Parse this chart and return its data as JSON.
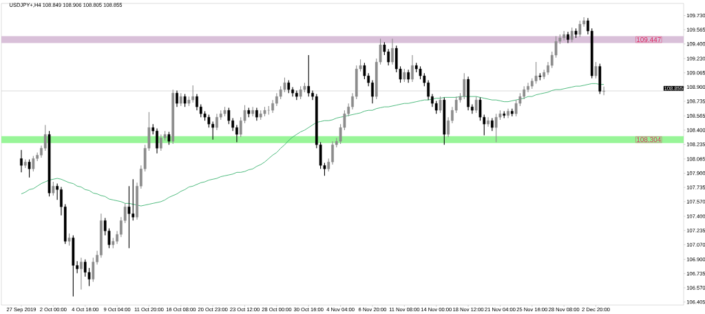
{
  "chart_data": {
    "type": "candlestick",
    "title": "USDJPY+,H4  108.849 108.906 108.805 108.855",
    "categories": [
      "27 Sep 2019",
      null,
      null,
      null,
      null,
      null,
      null,
      null,
      "2 Oct 00:00",
      null,
      null,
      null,
      null,
      null,
      null,
      null,
      "4 Oct 16:00",
      null,
      null,
      null,
      null,
      null,
      null,
      null,
      "9 Oct 04:00",
      null,
      null,
      null,
      null,
      null,
      null,
      null,
      "11 Oct 20:00",
      null,
      null,
      null,
      null,
      null,
      null,
      null,
      "16 Oct 08:00",
      null,
      null,
      null,
      null,
      null,
      null,
      null,
      "20 Oct 23:00",
      null,
      null,
      null,
      null,
      null,
      null,
      null,
      "23 Oct 12:00",
      null,
      null,
      null,
      null,
      null,
      null,
      null,
      "28 Oct 00:00",
      null,
      null,
      null,
      null,
      null,
      null,
      null,
      "30 Oct 16:00",
      null,
      null,
      null,
      null,
      null,
      null,
      null,
      "4 Nov 04:00",
      null,
      null,
      null,
      null,
      null,
      null,
      null,
      "6 Nov 20:00",
      null,
      null,
      null,
      null,
      null,
      null,
      null,
      "11 Nov 08:00",
      null,
      null,
      null,
      null,
      null,
      null,
      null,
      "14 Nov 00:00",
      null,
      null,
      null,
      null,
      null,
      null,
      null,
      "18 Nov 12:00",
      null,
      null,
      null,
      null,
      null,
      null,
      null,
      "21 Nov 04:00",
      null,
      null,
      null,
      null,
      null,
      null,
      null,
      "25 Nov 16:00",
      null,
      null,
      null,
      null,
      null,
      null,
      null,
      "28 Nov 08:00",
      null,
      null,
      null,
      null,
      null,
      null,
      null,
      "2 Dec 20:00",
      null,
      null
    ],
    "ohlc": [
      [
        108.07,
        108.17,
        107.91,
        107.99
      ],
      [
        107.99,
        108.06,
        107.96,
        108.03
      ],
      [
        108.03,
        108.06,
        107.85,
        107.95
      ],
      [
        107.95,
        108.1,
        107.92,
        108.07
      ],
      [
        108.07,
        108.14,
        108.04,
        108.11
      ],
      [
        108.11,
        108.22,
        108.08,
        108.19
      ],
      [
        108.19,
        108.46,
        108.16,
        108.35
      ],
      [
        108.35,
        108.39,
        107.63,
        107.67
      ],
      [
        107.67,
        107.8,
        107.64,
        107.75
      ],
      [
        107.75,
        107.78,
        107.59,
        107.71
      ],
      [
        107.71,
        107.74,
        107.41,
        107.51
      ],
      [
        107.51,
        107.54,
        107.08,
        107.11
      ],
      [
        107.11,
        107.2,
        107.06,
        107.15
      ],
      [
        107.15,
        107.18,
        106.47,
        106.83
      ],
      [
        106.83,
        106.88,
        106.74,
        106.79
      ],
      [
        106.79,
        106.92,
        106.55,
        106.87
      ],
      [
        106.87,
        106.9,
        106.7,
        106.75
      ],
      [
        106.75,
        106.8,
        106.59,
        106.67
      ],
      [
        106.67,
        106.92,
        106.64,
        106.87
      ],
      [
        106.87,
        107.0,
        106.84,
        106.95
      ],
      [
        106.95,
        107.43,
        106.92,
        107.35
      ],
      [
        107.35,
        107.38,
        107.18,
        107.23
      ],
      [
        107.23,
        107.26,
        107.03,
        107.07
      ],
      [
        107.07,
        107.15,
        107.03,
        107.11
      ],
      [
        107.11,
        107.23,
        107.08,
        107.19
      ],
      [
        107.19,
        107.39,
        107.16,
        107.35
      ],
      [
        107.35,
        107.55,
        107.32,
        107.51
      ],
      [
        107.51,
        107.75,
        107.03,
        107.43
      ],
      [
        107.43,
        107.83,
        107.35,
        107.39
      ],
      [
        107.39,
        107.79,
        107.36,
        107.75
      ],
      [
        107.75,
        107.99,
        107.72,
        107.95
      ],
      [
        107.95,
        108.23,
        107.92,
        108.19
      ],
      [
        108.19,
        108.61,
        108.16,
        108.43
      ],
      [
        108.43,
        108.47,
        108.35,
        108.39
      ],
      [
        108.39,
        108.42,
        108.13,
        108.19
      ],
      [
        108.19,
        108.35,
        108.16,
        108.31
      ],
      [
        108.31,
        108.39,
        108.28,
        108.35
      ],
      [
        108.35,
        108.38,
        108.23,
        108.27
      ],
      [
        108.27,
        108.87,
        108.24,
        108.83
      ],
      [
        108.83,
        108.86,
        108.67,
        108.71
      ],
      [
        108.71,
        108.83,
        108.68,
        108.79
      ],
      [
        108.79,
        108.82,
        108.67,
        108.71
      ],
      [
        108.71,
        108.79,
        108.68,
        108.75
      ],
      [
        108.75,
        108.92,
        108.72,
        108.79
      ],
      [
        108.79,
        108.82,
        108.63,
        108.67
      ],
      [
        108.67,
        108.7,
        108.55,
        108.59
      ],
      [
        108.59,
        108.62,
        108.51,
        108.55
      ],
      [
        108.55,
        108.58,
        108.43,
        108.47
      ],
      [
        108.47,
        108.5,
        108.29,
        108.43
      ],
      [
        108.43,
        108.59,
        108.4,
        108.55
      ],
      [
        108.55,
        108.63,
        108.52,
        108.59
      ],
      [
        108.59,
        108.67,
        108.56,
        108.63
      ],
      [
        108.63,
        108.66,
        108.47,
        108.51
      ],
      [
        108.51,
        108.54,
        108.39,
        108.43
      ],
      [
        108.43,
        108.46,
        108.26,
        108.35
      ],
      [
        108.35,
        108.55,
        108.32,
        108.51
      ],
      [
        108.51,
        108.69,
        108.48,
        108.63
      ],
      [
        108.63,
        108.66,
        108.55,
        108.59
      ],
      [
        108.59,
        108.67,
        108.56,
        108.63
      ],
      [
        108.63,
        108.66,
        108.51,
        108.55
      ],
      [
        108.55,
        108.63,
        108.52,
        108.59
      ],
      [
        108.59,
        108.67,
        108.56,
        108.63
      ],
      [
        108.63,
        108.68,
        108.58,
        108.63
      ],
      [
        108.63,
        108.75,
        108.6,
        108.71
      ],
      [
        108.71,
        108.83,
        108.68,
        108.79
      ],
      [
        108.79,
        108.91,
        108.76,
        108.87
      ],
      [
        108.87,
        109.01,
        108.84,
        108.95
      ],
      [
        108.95,
        108.98,
        108.83,
        108.87
      ],
      [
        108.87,
        108.9,
        108.79,
        108.83
      ],
      [
        108.83,
        108.86,
        108.75,
        108.79
      ],
      [
        108.79,
        108.91,
        108.76,
        108.87
      ],
      [
        108.87,
        108.95,
        108.84,
        108.91
      ],
      [
        108.91,
        109.27,
        108.79,
        108.83
      ],
      [
        108.83,
        108.86,
        108.75,
        108.79
      ],
      [
        108.79,
        108.82,
        108.19,
        108.23
      ],
      [
        108.23,
        108.26,
        107.95,
        107.99
      ],
      [
        107.99,
        108.02,
        107.87,
        107.95
      ],
      [
        107.95,
        108.07,
        107.92,
        108.03
      ],
      [
        108.03,
        108.27,
        108.0,
        108.23
      ],
      [
        108.23,
        108.31,
        108.2,
        108.27
      ],
      [
        108.27,
        108.47,
        108.24,
        108.43
      ],
      [
        108.43,
        108.63,
        108.4,
        108.59
      ],
      [
        108.59,
        108.71,
        108.56,
        108.67
      ],
      [
        108.67,
        108.83,
        108.64,
        108.79
      ],
      [
        108.79,
        109.15,
        108.76,
        109.11
      ],
      [
        109.11,
        109.22,
        109.08,
        109.15
      ],
      [
        109.15,
        109.18,
        108.99,
        109.03
      ],
      [
        109.03,
        109.06,
        108.91,
        108.95
      ],
      [
        108.95,
        108.98,
        108.71,
        108.79
      ],
      [
        108.79,
        109.23,
        108.76,
        109.19
      ],
      [
        109.19,
        109.46,
        109.16,
        109.39
      ],
      [
        109.39,
        109.42,
        109.27,
        109.31
      ],
      [
        109.31,
        109.34,
        109.15,
        109.19
      ],
      [
        109.19,
        109.46,
        109.16,
        109.35
      ],
      [
        109.35,
        109.38,
        109.07,
        109.11
      ],
      [
        109.11,
        109.14,
        108.95,
        108.99
      ],
      [
        108.99,
        109.11,
        108.96,
        109.07
      ],
      [
        109.07,
        109.1,
        108.95,
        108.99
      ],
      [
        108.99,
        109.27,
        108.96,
        109.15
      ],
      [
        109.15,
        109.18,
        109.07,
        109.11
      ],
      [
        109.11,
        109.14,
        108.99,
        109.03
      ],
      [
        109.03,
        109.06,
        108.91,
        108.95
      ],
      [
        108.95,
        108.98,
        108.75,
        108.79
      ],
      [
        108.79,
        108.82,
        108.67,
        108.71
      ],
      [
        108.71,
        108.74,
        108.59,
        108.63
      ],
      [
        108.63,
        108.79,
        108.6,
        108.75
      ],
      [
        108.75,
        108.78,
        108.23,
        108.35
      ],
      [
        108.35,
        108.55,
        108.32,
        108.51
      ],
      [
        108.51,
        108.67,
        108.48,
        108.63
      ],
      [
        108.63,
        108.79,
        108.6,
        108.75
      ],
      [
        108.75,
        108.83,
        108.72,
        108.79
      ],
      [
        108.79,
        109.06,
        108.76,
        108.99
      ],
      [
        108.99,
        109.02,
        108.63,
        108.67
      ],
      [
        108.67,
        108.7,
        108.59,
        108.63
      ],
      [
        108.63,
        108.79,
        108.6,
        108.75
      ],
      [
        108.75,
        108.78,
        108.51,
        108.55
      ],
      [
        108.55,
        108.58,
        108.34,
        108.47
      ],
      [
        108.47,
        108.55,
        108.44,
        108.51
      ],
      [
        108.51,
        108.54,
        108.39,
        108.43
      ],
      [
        108.43,
        108.59,
        108.26,
        108.55
      ],
      [
        108.55,
        108.63,
        108.52,
        108.59
      ],
      [
        108.59,
        108.62,
        108.54,
        108.57
      ],
      [
        108.57,
        108.65,
        108.54,
        108.62
      ],
      [
        108.62,
        108.65,
        108.56,
        108.59
      ],
      [
        108.59,
        108.75,
        108.56,
        108.71
      ],
      [
        108.71,
        108.83,
        108.68,
        108.79
      ],
      [
        108.79,
        108.91,
        108.76,
        108.87
      ],
      [
        108.87,
        108.95,
        108.84,
        108.91
      ],
      [
        108.91,
        109.0,
        108.88,
        108.97
      ],
      [
        108.97,
        109.19,
        108.94,
        109.03
      ],
      [
        109.03,
        109.06,
        108.98,
        109.02
      ],
      [
        109.02,
        109.1,
        108.99,
        109.07
      ],
      [
        109.07,
        109.19,
        109.04,
        109.15
      ],
      [
        109.15,
        109.31,
        109.12,
        109.27
      ],
      [
        109.27,
        109.49,
        109.24,
        109.43
      ],
      [
        109.43,
        109.51,
        109.4,
        109.47
      ],
      [
        109.47,
        109.55,
        109.44,
        109.51
      ],
      [
        109.51,
        109.54,
        109.41,
        109.45
      ],
      [
        109.45,
        109.59,
        109.42,
        109.55
      ],
      [
        109.55,
        109.58,
        109.47,
        109.51
      ],
      [
        109.51,
        109.67,
        109.48,
        109.63
      ],
      [
        109.63,
        109.71,
        109.6,
        109.67
      ],
      [
        109.67,
        109.7,
        109.51,
        109.55
      ],
      [
        109.55,
        109.58,
        109.0,
        109.03
      ],
      [
        109.03,
        109.19,
        109.0,
        109.14
      ],
      [
        109.14,
        109.17,
        108.82,
        108.85
      ],
      [
        108.849,
        108.906,
        108.805,
        108.855
      ]
    ],
    "series": [
      {
        "type": "line",
        "color": "#3cb371",
        "values": [
          107.66,
          107.68,
          107.71,
          107.72,
          107.75,
          107.78,
          107.8,
          107.82,
          107.83,
          107.84,
          107.83,
          107.81,
          107.79,
          107.78,
          107.75,
          107.74,
          107.71,
          107.7,
          107.67,
          107.66,
          107.64,
          107.63,
          107.6,
          107.59,
          107.58,
          107.57,
          107.55,
          107.55,
          107.54,
          107.53,
          107.52,
          107.53,
          107.54,
          107.55,
          107.56,
          107.57,
          107.59,
          107.62,
          107.64,
          107.66,
          107.69,
          107.71,
          107.74,
          107.75,
          107.77,
          107.79,
          107.8,
          107.82,
          107.83,
          107.84,
          107.86,
          107.87,
          107.88,
          107.89,
          107.91,
          107.91,
          107.92,
          107.94,
          107.95,
          107.98,
          108.0,
          108.03,
          108.07,
          108.11,
          108.14,
          108.19,
          108.23,
          108.28,
          108.32,
          108.35,
          108.38,
          108.4,
          108.43,
          108.46,
          108.49,
          108.5,
          108.51,
          108.51,
          108.52,
          108.54,
          108.55,
          108.56,
          108.57,
          108.58,
          108.59,
          108.6,
          108.62,
          108.63,
          108.63,
          108.65,
          108.66,
          108.67,
          108.67,
          108.68,
          108.69,
          108.7,
          108.71,
          108.71,
          108.72,
          108.73,
          108.74,
          108.75,
          108.75,
          108.76,
          108.77,
          108.77,
          108.78,
          108.78,
          108.78,
          108.78,
          108.79,
          108.79,
          108.79,
          108.79,
          108.79,
          108.78,
          108.77,
          108.76,
          108.75,
          108.75,
          108.74,
          108.73,
          108.73,
          108.74,
          108.75,
          108.76,
          108.77,
          108.79,
          108.79,
          108.81,
          108.82,
          108.83,
          108.84,
          108.86,
          108.87,
          108.87,
          108.88,
          108.89,
          108.9,
          108.91,
          108.91,
          108.92,
          108.93,
          108.94,
          108.94,
          108.93,
          108.93
        ]
      }
    ],
    "ylim": [
      106.37,
      109.87
    ],
    "yticks": [
      {
        "value": 109.73,
        "label": "109.730"
      },
      {
        "value": 109.565,
        "label": "109.565"
      },
      {
        "value": 109.4,
        "label": "109.400"
      },
      {
        "value": 109.23,
        "label": "109.230"
      },
      {
        "value": 109.065,
        "label": "109.065"
      },
      {
        "value": 108.9,
        "label": "108.900"
      },
      {
        "value": 108.735,
        "label": "108.735"
      },
      {
        "value": 108.565,
        "label": "108.565"
      },
      {
        "value": 108.4,
        "label": "108.400"
      },
      {
        "value": 108.235,
        "label": "108.235"
      },
      {
        "value": 108.065,
        "label": "108.065"
      },
      {
        "value": 107.9,
        "label": "107.900"
      },
      {
        "value": 107.735,
        "label": "107.735"
      },
      {
        "value": 107.57,
        "label": "107.570"
      },
      {
        "value": 107.4,
        "label": "107.400"
      },
      {
        "value": 107.235,
        "label": "107.235"
      },
      {
        "value": 107.07,
        "label": "107.070"
      },
      {
        "value": 106.9,
        "label": "106.900"
      },
      {
        "value": 106.735,
        "label": "106.735"
      },
      {
        "value": 106.57,
        "label": "106.570"
      },
      {
        "value": 106.405,
        "label": "106.405"
      }
    ],
    "ref_lines": [
      {
        "axis": "y",
        "value": 108.855,
        "label": "108.855",
        "color": "#c0c0c0"
      }
    ],
    "bands": [
      {
        "axis": "y",
        "from": 109.41,
        "to": 109.49,
        "label": "109.447",
        "color": "#d9c0d9"
      },
      {
        "axis": "y",
        "from": 108.25,
        "to": 108.33,
        "label": "108.304",
        "color": "#98f598"
      }
    ]
  }
}
